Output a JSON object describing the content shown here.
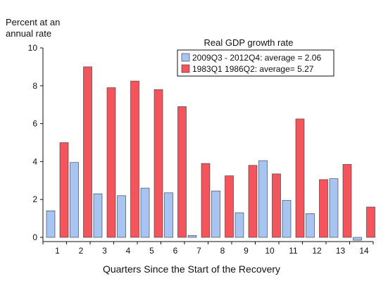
{
  "chart_data": {
    "type": "bar",
    "title": "Real GDP growth rate",
    "ylabel": "Percent at an annual rate",
    "xlabel": "Quarters Since the Start of the Recovery",
    "categories": [
      "1",
      "2",
      "3",
      "4",
      "5",
      "6",
      "7",
      "8",
      "9",
      "10",
      "11",
      "12",
      "13",
      "14"
    ],
    "yticks": [
      0,
      2,
      4,
      6,
      8,
      10
    ],
    "ylim": [
      -0.2,
      10
    ],
    "series": [
      {
        "name": "2009Q3 - 2012Q4: average = 2.06",
        "color": "#a7c4f2",
        "values": [
          1.4,
          3.95,
          2.3,
          2.2,
          2.6,
          2.35,
          0.1,
          2.45,
          1.3,
          4.05,
          1.95,
          1.25,
          3.1,
          -0.15
        ]
      },
      {
        "name": "1983Q1 1986Q2: average= 5.27",
        "color": "#f4545c",
        "values": [
          5.0,
          9.0,
          7.9,
          8.25,
          7.8,
          6.9,
          3.9,
          3.25,
          3.8,
          3.35,
          6.25,
          3.05,
          3.85,
          1.6
        ]
      }
    ],
    "legend": "top-right",
    "grid": false
  }
}
